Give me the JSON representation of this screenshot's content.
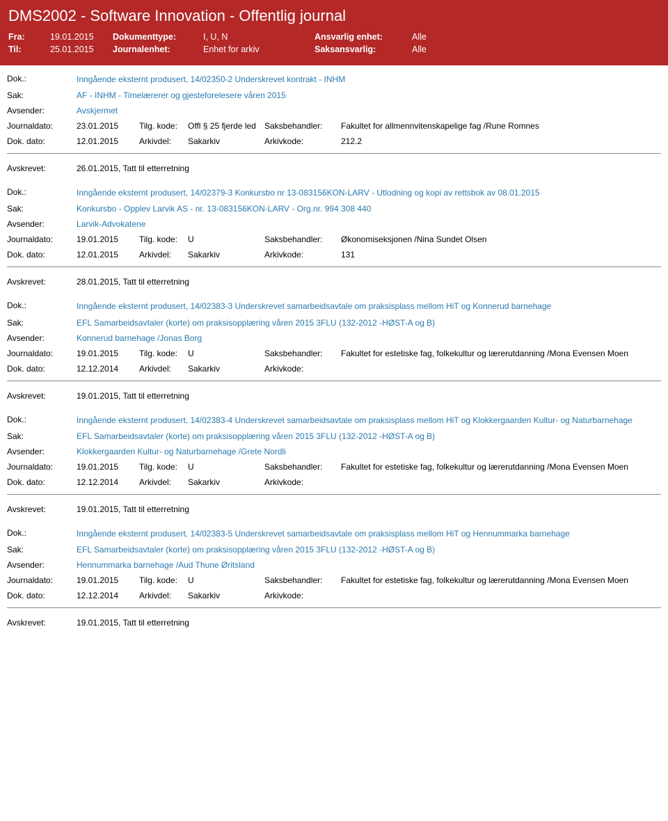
{
  "header": {
    "title": "DMS2002 - Software Innovation - Offentlig journal",
    "fra_label": "Fra:",
    "fra_value": "19.01.2015",
    "til_label": "Til:",
    "til_value": "25.01.2015",
    "doktype_label": "Dokumenttype:",
    "doktype_value": "I, U, N",
    "journalenhet_label": "Journalenhet:",
    "journalenhet_value": "Enhet for arkiv",
    "ansvarlig_label": "Ansvarlig enhet:",
    "ansvarlig_value": "Alle",
    "saksansvarlig_label": "Saksansvarlig:",
    "saksansvarlig_value": "Alle"
  },
  "labels": {
    "dok": "Dok.:",
    "sak": "Sak:",
    "avsender": "Avsender:",
    "journaldato": "Journaldato:",
    "tilgkode": "Tilg. kode:",
    "saksbehandler": "Saksbehandler:",
    "dokdato": "Dok. dato:",
    "arkivdel": "Arkivdel:",
    "arkivkode": "Arkivkode:",
    "avskrevet": "Avskrevet:"
  },
  "entries": [
    {
      "dok": "Inngående eksternt produsert, 14/02350-2 Underskrevet kontrakt - INHM",
      "sak": "AF - INHM - Timelærerer og gjesteforelesere våren 2015",
      "avsender": "Avskjermet",
      "journaldato": "23.01.2015",
      "tilgkode": "Offl § 25 fjerde led",
      "saksbehandler": "Fakultet for allmennvitenskapelige fag /Rune Romnes",
      "dokdato": "12.01.2015",
      "arkivdel": "Sakarkiv",
      "arkivkode": "212.2",
      "avskrevet": "26.01.2015, Tatt til etterretning"
    },
    {
      "dok": "Inngående eksternt produsert, 14/02379-3 Konkursbo nr 13-083156KON-LARV - Utlodning og kopi av rettsbok av 08.01.2015",
      "sak": "Konkursbo - Opplev Larvik AS - nr. 13-083156KON-LARV - Org.nr. 994 308 440",
      "avsender": "Larvik-Advokatene",
      "journaldato": "19.01.2015",
      "tilgkode": "U",
      "saksbehandler": "Økonomiseksjonen /Nina Sundet Olsen",
      "dokdato": "12.01.2015",
      "arkivdel": "Sakarkiv",
      "arkivkode": "131",
      "avskrevet": "28.01.2015, Tatt til etterretning"
    },
    {
      "dok": "Inngående eksternt produsert, 14/02383-3 Underskrevet samarbeidsavtale om praksisplass mellom HiT og Konnerud barnehage",
      "sak": "EFL Samarbeidsavtaler (korte) om praksisopplæring våren 2015 3FLU (132-2012 -HØST-A og B)",
      "avsender": "Konnerud barnehage /Jonas Borg",
      "journaldato": "19.01.2015",
      "tilgkode": "U",
      "saksbehandler": "Fakultet for estetiske fag, folkekultur og lærerutdanning /Mona Evensen Moen",
      "dokdato": "12.12.2014",
      "arkivdel": "Sakarkiv",
      "arkivkode": "",
      "avskrevet": "19.01.2015, Tatt til etterretning"
    },
    {
      "dok": "Inngående eksternt produsert, 14/02383-4 Underskrevet samarbeidsavtale om praksisplass mellom HiT og Klokkergaarden Kultur- og Naturbarnehage",
      "sak": "EFL Samarbeidsavtaler (korte) om praksisopplæring våren 2015 3FLU (132-2012 -HØST-A og B)",
      "avsender": "Klokkergaarden Kultur- og Naturbarnehage /Grete Nordli",
      "journaldato": "19.01.2015",
      "tilgkode": "U",
      "saksbehandler": "Fakultet for estetiske fag, folkekultur og lærerutdanning /Mona Evensen Moen",
      "dokdato": "12.12.2014",
      "arkivdel": "Sakarkiv",
      "arkivkode": "",
      "avskrevet": "19.01.2015, Tatt til etterretning"
    },
    {
      "dok": "Inngående eksternt produsert, 14/02383-5 Underskrevet samarbeidsavtale om praksisplass mellom HiT og Hennummarka barnehage",
      "sak": "EFL Samarbeidsavtaler (korte) om praksisopplæring våren 2015 3FLU (132-2012 -HØST-A og B)",
      "avsender": "Hennummarka barnehage /Aud Thune Øritsland",
      "journaldato": "19.01.2015",
      "tilgkode": "U",
      "saksbehandler": "Fakultet for estetiske fag, folkekultur og lærerutdanning /Mona Evensen Moen",
      "dokdato": "12.12.2014",
      "arkivdel": "Sakarkiv",
      "arkivkode": "",
      "avskrevet": "19.01.2015, Tatt til etterretning"
    }
  ]
}
